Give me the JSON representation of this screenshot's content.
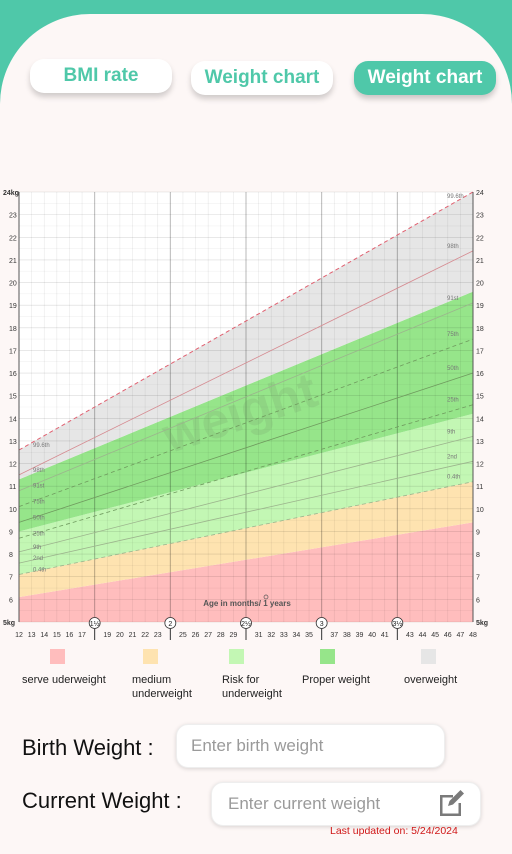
{
  "tabs": [
    {
      "label": "BMI rate"
    },
    {
      "label": "Weight chart"
    },
    {
      "label": "Weight chart"
    }
  ],
  "chart_data": {
    "type": "area",
    "title": "",
    "watermark": "weight",
    "xlabel": "Age in months/ 1 years",
    "ylabel": "",
    "x_ticks": [
      12,
      13,
      14,
      15,
      16,
      17,
      18,
      19,
      20,
      21,
      22,
      23,
      24,
      25,
      26,
      27,
      28,
      29,
      30,
      31,
      32,
      33,
      34,
      35,
      36,
      37,
      38,
      39,
      40,
      41,
      42,
      43,
      44,
      45,
      46,
      47,
      48
    ],
    "x_tick_labels": [
      "12",
      "13",
      "14",
      "15",
      "16",
      "17",
      "",
      "19",
      "20",
      "21",
      "22",
      "23",
      "",
      "25",
      "26",
      "27",
      "28",
      "29",
      "",
      "31",
      "32",
      "33",
      "34",
      "35",
      "",
      "37",
      "38",
      "39",
      "40",
      "41",
      "",
      "43",
      "44",
      "45",
      "46",
      "47",
      "48"
    ],
    "year_markers": [
      {
        "x": 18,
        "label": "1½"
      },
      {
        "x": 24,
        "label": "2"
      },
      {
        "x": 30,
        "label": "2½"
      },
      {
        "x": 36,
        "label": "3"
      },
      {
        "x": 42,
        "label": "3½"
      }
    ],
    "xlim": [
      12,
      48
    ],
    "ylim": [
      5,
      24
    ],
    "y_ticks_left": [
      "5kg",
      "6",
      "7",
      "8",
      "9",
      "10",
      "11",
      "12",
      "13",
      "14",
      "15",
      "16",
      "17",
      "18",
      "19",
      "20",
      "21",
      "22",
      "23",
      "24kg"
    ],
    "y_ticks_right": [
      "5kg",
      "6",
      "7",
      "8",
      "9",
      "10",
      "11",
      "12",
      "13",
      "14",
      "15",
      "16",
      "17",
      "18",
      "19",
      "20",
      "21",
      "22",
      "23",
      "24"
    ],
    "grid": true,
    "bands": [
      {
        "name": "serve uderweight",
        "color": "#ffbdbd",
        "lower": [
          5,
          5
        ],
        "upper": [
          6.1,
          9.4
        ]
      },
      {
        "name": "medium underweight",
        "color": "#fee3b0",
        "lower": [
          6.1,
          9.4
        ],
        "upper": [
          7.1,
          11.2
        ]
      },
      {
        "name": "Risk for underweight",
        "color": "#c3f7b4",
        "lower": [
          7.1,
          11.2
        ],
        "upper": [
          9.0,
          14.2
        ]
      },
      {
        "name": "Proper weight",
        "color": "#96e58a",
        "lower": [
          9.0,
          14.2
        ],
        "upper": [
          11.3,
          19.6
        ]
      },
      {
        "name": "overweight",
        "color": "#e6e6e6",
        "lower": [
          11.3,
          19.6
        ],
        "upper": [
          12.6,
          24
        ]
      }
    ],
    "centiles": [
      {
        "name": "0.4th",
        "x": [
          12,
          48
        ],
        "y": [
          7.1,
          11.2
        ],
        "dash": true
      },
      {
        "name": "2nd",
        "x": [
          12,
          48
        ],
        "y": [
          7.6,
          12.1
        ],
        "dash": false
      },
      {
        "name": "9th",
        "x": [
          12,
          48
        ],
        "y": [
          8.1,
          13.2
        ],
        "dash": false
      },
      {
        "name": "25th",
        "x": [
          12,
          48
        ],
        "y": [
          8.7,
          14.6
        ],
        "dash": true
      },
      {
        "name": "50th",
        "x": [
          12,
          48
        ],
        "y": [
          9.4,
          16.0
        ],
        "dash": false
      },
      {
        "name": "75th",
        "x": [
          12,
          48
        ],
        "y": [
          10.1,
          17.5
        ],
        "dash": true
      },
      {
        "name": "91st",
        "x": [
          12,
          48
        ],
        "y": [
          10.8,
          19.1
        ],
        "dash": false
      },
      {
        "name": "98th",
        "x": [
          12,
          48
        ],
        "y": [
          11.5,
          21.4
        ],
        "dash": false
      },
      {
        "name": "99.6th",
        "x": [
          12,
          48
        ],
        "y": [
          12.6,
          24.0
        ],
        "dash": true
      }
    ]
  },
  "legend": [
    {
      "label": "serve uderweight",
      "color": "#ffbdbd"
    },
    {
      "label": "medium underweight",
      "color": "#fee3b0"
    },
    {
      "label": "Risk for underweight",
      "color": "#c3f7b4"
    },
    {
      "label": "Proper weight",
      "color": "#96e58a"
    },
    {
      "label": "overweight",
      "color": "#e6e6e6"
    }
  ],
  "form": {
    "birth_label": "Birth Weight :",
    "birth_placeholder": "Enter birth weight",
    "current_label": "Current Weight :",
    "current_placeholder": "Enter current weight"
  },
  "icons": {
    "edit": "edit-icon"
  },
  "last_updated": "Last updated on: 5/24/2024",
  "colors": {
    "accent": "#4fc8a9",
    "card_bg": "#fdf7f6",
    "warning_text": "#d01818"
  }
}
